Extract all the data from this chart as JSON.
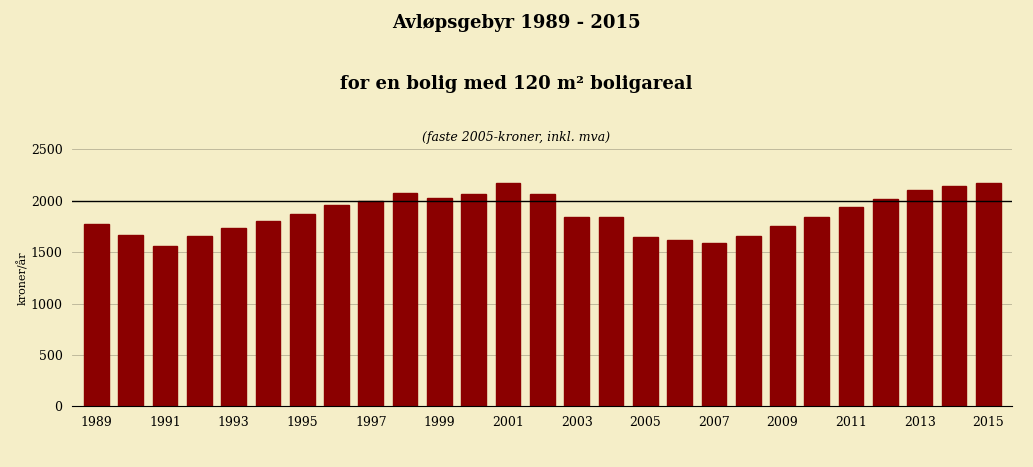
{
  "title_line1": "Avløpsgebyr 1989 - 2015",
  "title_line2": "for en bolig med 120 m² boligareal",
  "title_line3": "(faste 2005-kroner, inkl. mva)",
  "ylabel": "kroner/år",
  "background_color": "#f5eec8",
  "bar_color": "#8b0000",
  "reference_line": 2000,
  "reference_line_color": "#000000",
  "ylim": [
    0,
    2500
  ],
  "yticks": [
    0,
    500,
    1000,
    1500,
    2000,
    2500
  ],
  "years": [
    1989,
    1990,
    1991,
    1992,
    1993,
    1994,
    1995,
    1996,
    1997,
    1998,
    1999,
    2000,
    2001,
    2002,
    2003,
    2004,
    2005,
    2006,
    2007,
    2008,
    2009,
    2010,
    2011,
    2012,
    2013,
    2014,
    2015
  ],
  "values": [
    1770,
    1670,
    1560,
    1660,
    1740,
    1800,
    1870,
    1960,
    2000,
    2080,
    2030,
    2070,
    2170,
    2070,
    1840,
    1840,
    1650,
    1620,
    1590,
    1660,
    1750,
    1840,
    1940,
    2020,
    2110,
    2140,
    2170
  ],
  "xtick_years": [
    1989,
    1991,
    1993,
    1995,
    1997,
    1999,
    2001,
    2003,
    2005,
    2007,
    2009,
    2011,
    2013,
    2015
  ],
  "grid_color": "#000000",
  "grid_alpha": 0.25,
  "title_fontsize": 13,
  "subtitle_fontsize": 13,
  "subsubtitle_fontsize": 9,
  "ylabel_fontsize": 8,
  "tick_fontsize": 9
}
